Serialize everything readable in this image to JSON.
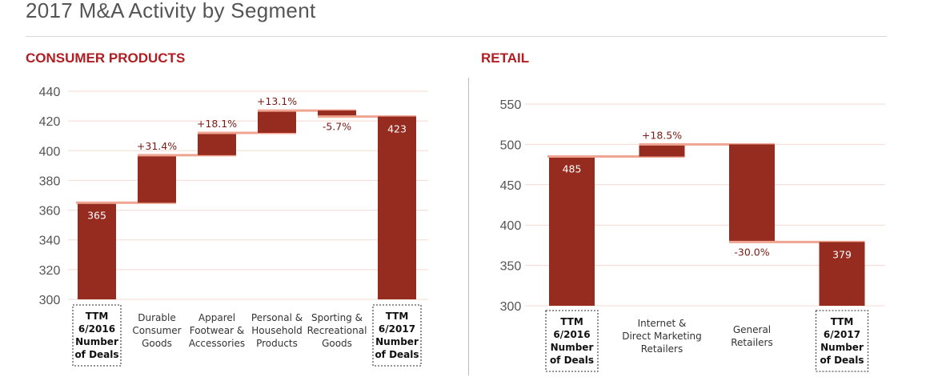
{
  "page_title": "2017 M&A Activity by Segment",
  "colors": {
    "bar": "#962b1f",
    "connector": "#f0a592",
    "title_accent": "#b01e23",
    "grid": "#f4d9d2"
  },
  "chart_data": [
    {
      "type": "waterfall",
      "title": "CONSUMER PRODUCTS",
      "ylim": [
        300,
        440
      ],
      "yticks": [
        300,
        320,
        340,
        360,
        380,
        400,
        420,
        440
      ],
      "grid": true,
      "categories": [
        {
          "lines": [
            "TTM",
            "6/2016",
            "Number",
            "of Deals"
          ],
          "total": true
        },
        {
          "lines": [
            "Durable",
            "Consumer",
            "Goods"
          ]
        },
        {
          "lines": [
            "Apparel",
            "Footwear &",
            "Accessories"
          ]
        },
        {
          "lines": [
            "Personal &",
            "Household",
            "Products"
          ]
        },
        {
          "lines": [
            "Sporting &",
            "Recreational",
            "Goods"
          ]
        },
        {
          "lines": [
            "TTM",
            "6/2017",
            "Number",
            "of Deals"
          ],
          "total": true
        }
      ],
      "bars": [
        {
          "kind": "total",
          "start": 300,
          "end": 365,
          "label": "365"
        },
        {
          "kind": "step",
          "start": 365,
          "end": 397,
          "label": "+31.4%"
        },
        {
          "kind": "step",
          "start": 397,
          "end": 412,
          "label": "+18.1%"
        },
        {
          "kind": "step",
          "start": 412,
          "end": 427,
          "label": "+13.1%"
        },
        {
          "kind": "step",
          "start": 427,
          "end": 423,
          "label": "-5.7%"
        },
        {
          "kind": "total",
          "start": 300,
          "end": 423,
          "label": "423"
        }
      ]
    },
    {
      "type": "waterfall",
      "title": "RETAIL",
      "ylim": [
        300,
        550
      ],
      "yticks": [
        300,
        350,
        400,
        450,
        500,
        550
      ],
      "grid": true,
      "categories": [
        {
          "lines": [
            "TTM",
            "6/2016",
            "Number",
            "of Deals"
          ],
          "total": true
        },
        {
          "lines": [
            "Internet &",
            "Direct Marketing",
            "Retailers"
          ]
        },
        {
          "lines": [
            "General",
            "Retailers"
          ]
        },
        {
          "lines": [
            "TTM",
            "6/2017",
            "Number",
            "of Deals"
          ],
          "total": true
        }
      ],
      "bars": [
        {
          "kind": "total",
          "start": 300,
          "end": 485,
          "label": "485"
        },
        {
          "kind": "step",
          "start": 485,
          "end": 500,
          "label": "+18.5%"
        },
        {
          "kind": "step",
          "start": 500,
          "end": 379,
          "label": "-30.0%"
        },
        {
          "kind": "total",
          "start": 300,
          "end": 379,
          "label": "379"
        }
      ]
    }
  ]
}
